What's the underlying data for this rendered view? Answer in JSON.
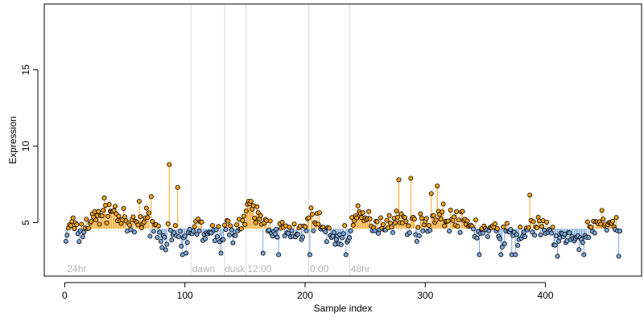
{
  "chart_data": {
    "type": "scatter",
    "title": "",
    "xlabel": "Sample index",
    "ylabel": "Expression",
    "xlim": [
      -17,
      480
    ],
    "ylim": [
      1.5,
      19.3
    ],
    "xticks": [
      0,
      100,
      200,
      300,
      400
    ],
    "yticks": [
      5,
      10,
      15
    ],
    "baseline": 4.6,
    "grid": false,
    "legend": "none",
    "colors": {
      "above": "#f5a21b",
      "below": "#7aa6dc",
      "divider": "#d9d9d9",
      "point_edge": "#000000"
    },
    "regions": [
      {
        "label": "24hr",
        "x": 2
      },
      {
        "label": "dawn",
        "x": 106
      },
      {
        "label": "dusk",
        "x": 133
      },
      {
        "label": "12:00",
        "x": 152
      },
      {
        "label": "0:00",
        "x": 204
      },
      {
        "label": "48hr",
        "x": 238
      }
    ],
    "dividers": [
      105,
      133,
      151,
      203,
      237
    ],
    "anchors": [
      [
        1,
        4.0
      ],
      [
        4,
        4.6
      ],
      [
        6,
        5.1
      ],
      [
        10,
        4.2
      ],
      [
        14,
        4.4
      ],
      [
        18,
        4.9
      ],
      [
        22,
        5.0
      ],
      [
        26,
        5.4
      ],
      [
        30,
        5.6
      ],
      [
        36,
        5.9
      ],
      [
        40,
        5.8
      ],
      [
        44,
        5.5
      ],
      [
        50,
        4.9
      ],
      [
        56,
        4.6
      ],
      [
        62,
        5.1
      ],
      [
        68,
        5.2
      ],
      [
        72,
        5.0
      ],
      [
        78,
        4.4
      ],
      [
        82,
        4.0
      ],
      [
        86,
        4.2
      ],
      [
        90,
        4.0
      ],
      [
        94,
        3.8
      ],
      [
        98,
        3.6
      ],
      [
        104,
        4.3
      ],
      [
        108,
        4.9
      ],
      [
        112,
        4.7
      ],
      [
        116,
        4.3
      ],
      [
        120,
        4.1
      ],
      [
        126,
        4.2
      ],
      [
        130,
        4.4
      ],
      [
        135,
        4.5
      ],
      [
        140,
        4.6
      ],
      [
        146,
        4.8
      ],
      [
        150,
        5.2
      ],
      [
        154,
        5.9
      ],
      [
        158,
        5.6
      ],
      [
        162,
        5.3
      ],
      [
        168,
        4.9
      ],
      [
        174,
        4.7
      ],
      [
        180,
        4.5
      ],
      [
        186,
        4.3
      ],
      [
        192,
        4.1
      ],
      [
        198,
        4.4
      ],
      [
        202,
        5.3
      ],
      [
        206,
        5.4
      ],
      [
        212,
        4.9
      ],
      [
        218,
        4.3
      ],
      [
        224,
        4.0
      ],
      [
        230,
        4.0
      ],
      [
        236,
        4.5
      ],
      [
        242,
        5.2
      ],
      [
        248,
        5.3
      ],
      [
        256,
        5.0
      ],
      [
        264,
        4.9
      ],
      [
        272,
        5.2
      ],
      [
        280,
        5.1
      ],
      [
        288,
        4.8
      ],
      [
        296,
        4.7
      ],
      [
        304,
        5.1
      ],
      [
        310,
        5.6
      ],
      [
        316,
        5.3
      ],
      [
        322,
        5.2
      ],
      [
        330,
        5.0
      ],
      [
        338,
        4.8
      ],
      [
        346,
        4.5
      ],
      [
        354,
        4.4
      ],
      [
        362,
        4.3
      ],
      [
        370,
        4.2
      ],
      [
        378,
        4.1
      ],
      [
        384,
        4.5
      ],
      [
        390,
        4.8
      ],
      [
        396,
        4.6
      ],
      [
        402,
        4.3
      ],
      [
        408,
        4.1
      ],
      [
        414,
        4.0
      ],
      [
        420,
        3.9
      ],
      [
        426,
        3.7
      ],
      [
        432,
        4.1
      ],
      [
        438,
        4.6
      ],
      [
        444,
        5.0
      ],
      [
        450,
        5.0
      ],
      [
        456,
        4.7
      ],
      [
        462,
        4.2
      ]
    ],
    "spikes": [
      [
        87,
        8.8
      ],
      [
        94,
        7.3
      ],
      [
        152,
        6.2
      ],
      [
        155,
        6.4
      ],
      [
        210,
        5.6
      ],
      [
        278,
        7.8
      ],
      [
        288,
        7.9
      ],
      [
        305,
        6.9
      ],
      [
        310,
        7.4
      ],
      [
        387,
        6.8
      ],
      [
        447,
        5.8
      ],
      [
        62,
        6.4
      ],
      [
        72,
        6.7
      ],
      [
        98,
        2.9
      ],
      [
        101,
        3.0
      ],
      [
        130,
        3.0
      ],
      [
        165,
        3.0
      ],
      [
        178,
        2.9
      ],
      [
        204,
        2.9
      ],
      [
        234,
        2.9
      ],
      [
        345,
        2.9
      ],
      [
        363,
        2.9
      ],
      [
        372,
        2.9
      ],
      [
        375,
        2.9
      ],
      [
        410,
        2.8
      ],
      [
        432,
        2.9
      ],
      [
        461,
        2.8
      ]
    ]
  }
}
